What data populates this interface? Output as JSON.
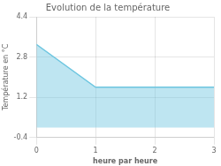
{
  "chart_data": {
    "type": "area",
    "title": "Evolution de la température",
    "xlabel": "heure par heure",
    "ylabel": "Température en °C",
    "x": [
      0,
      1,
      3
    ],
    "values": [
      3.3,
      1.6,
      1.6
    ],
    "color": "#6ec6e0",
    "xlim": [
      0,
      3
    ],
    "ylim": [
      -0.4,
      4.4
    ],
    "xticks": [
      0,
      1,
      2,
      3
    ],
    "yticks": [
      -0.4,
      1.2,
      2.8,
      4.4
    ],
    "grid": true
  }
}
